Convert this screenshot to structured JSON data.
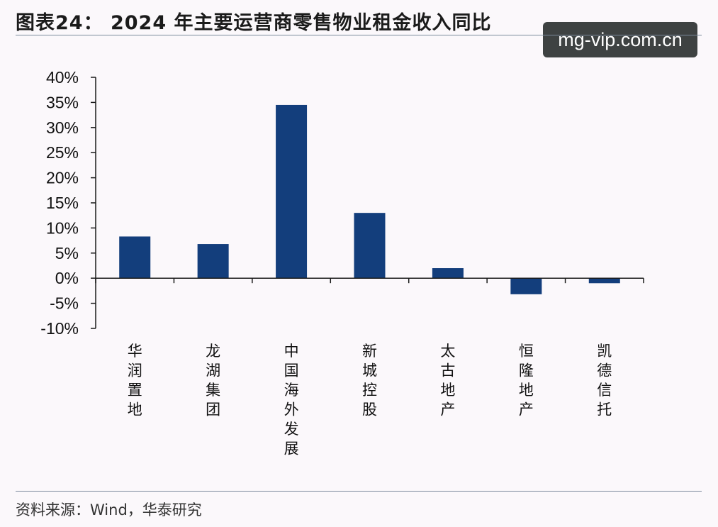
{
  "header": {
    "title": "图表24： 2024 年主要运营商零售物业租金收入同比"
  },
  "watermark": {
    "text": "mg-vip.com.cn"
  },
  "footer": {
    "source": "资料来源：Wind，华泰研究"
  },
  "colors": {
    "bar": "#133e7c",
    "axis": "#1a1a1a"
  },
  "chart_data": {
    "type": "bar",
    "title": "2024 年主要运营商零售物业租金收入同比",
    "categories": [
      "华润置地",
      "龙湖集团",
      "中国海外发展",
      "新城控股",
      "太古地产",
      "恒隆地产",
      "凯德信托"
    ],
    "values": [
      8.3,
      6.8,
      34.5,
      13.0,
      2.0,
      -3.2,
      -1.0
    ],
    "unit": "%",
    "xlabel": "",
    "ylabel": "",
    "ylim": [
      -10,
      40
    ],
    "yticks": [
      40,
      35,
      30,
      25,
      20,
      15,
      10,
      5,
      0,
      -5,
      -10
    ],
    "ytick_labels": [
      "40%",
      "35%",
      "30%",
      "25%",
      "20%",
      "15%",
      "10%",
      "5%",
      "0%",
      "-5%",
      "-10%"
    ],
    "grid": false,
    "legend": "none"
  }
}
